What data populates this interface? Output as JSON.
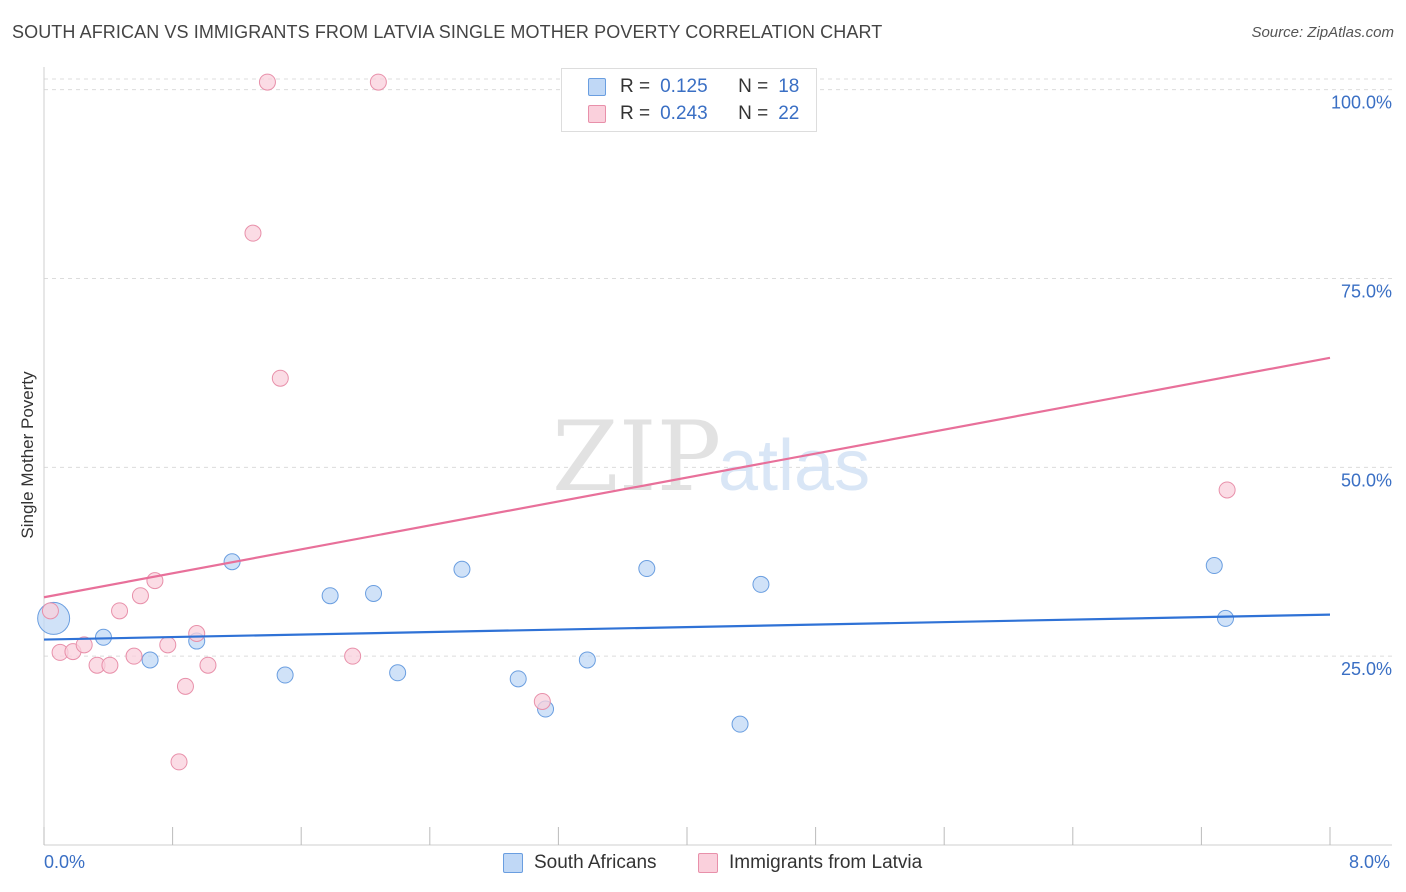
{
  "header": {
    "title": "SOUTH AFRICAN VS IMMIGRANTS FROM LATVIA SINGLE MOTHER POVERTY CORRELATION CHART",
    "source": "Source: ZipAtlas.com"
  },
  "watermark": {
    "zip": "ZIP",
    "atlas": "atlas"
  },
  "legend": {
    "rows": [
      {
        "r_label": "R =",
        "r_value": "0.125",
        "n_label": "N =",
        "n_value": "18",
        "color": "#a8c8f0",
        "border": "#6a9ee0"
      },
      {
        "r_label": "R =",
        "r_value": "0.243",
        "n_label": "N =",
        "n_value": "22",
        "color": "#f8c0d0",
        "border": "#e890aa"
      }
    ]
  },
  "bottom_legend": {
    "items": [
      {
        "label": "South Africans",
        "color": "#c0d8f6",
        "border": "#6a9ee0"
      },
      {
        "label": "Immigrants from Latvia",
        "color": "#fad0dc",
        "border": "#e890aa"
      }
    ]
  },
  "chart_data": {
    "type": "scatter",
    "title": "SOUTH AFRICAN VS IMMIGRANTS FROM LATVIA SINGLE MOTHER POVERTY CORRELATION CHART",
    "xlabel": "",
    "ylabel": "Single Mother Poverty",
    "xlim": [
      0,
      8
    ],
    "ylim": [
      0,
      103
    ],
    "x_tick_labels": [
      "0.0%",
      "8.0%"
    ],
    "y_ticks": [
      25,
      50,
      75,
      100
    ],
    "y_tick_labels": [
      "25.0%",
      "50.0%",
      "75.0%",
      "100.0%"
    ],
    "grid": "horizontal dashed",
    "series": [
      {
        "name": "South Africans",
        "color": "#6a9ee0",
        "fill": "#c0d8f6",
        "points": [
          {
            "x": 0.06,
            "y": 30.0,
            "big": true
          },
          {
            "x": 0.37,
            "y": 27.5
          },
          {
            "x": 0.66,
            "y": 24.5
          },
          {
            "x": 0.95,
            "y": 27.0
          },
          {
            "x": 1.17,
            "y": 37.5
          },
          {
            "x": 1.5,
            "y": 22.5
          },
          {
            "x": 1.78,
            "y": 33.0
          },
          {
            "x": 2.05,
            "y": 33.3
          },
          {
            "x": 2.2,
            "y": 22.8
          },
          {
            "x": 2.6,
            "y": 36.5
          },
          {
            "x": 2.95,
            "y": 22.0
          },
          {
            "x": 3.12,
            "y": 18.0
          },
          {
            "x": 3.38,
            "y": 24.5
          },
          {
            "x": 3.75,
            "y": 36.6
          },
          {
            "x": 4.33,
            "y": 16.0
          },
          {
            "x": 4.46,
            "y": 34.5
          },
          {
            "x": 7.28,
            "y": 37.0
          },
          {
            "x": 7.35,
            "y": 30.0
          }
        ],
        "trend": {
          "x1": 0,
          "y1": 27.2,
          "x2": 8,
          "y2": 30.5
        }
      },
      {
        "name": "Immigrants from Latvia",
        "color": "#e890aa",
        "fill": "#fad0dc",
        "points": [
          {
            "x": 0.04,
            "y": 31.0
          },
          {
            "x": 0.1,
            "y": 25.5
          },
          {
            "x": 0.18,
            "y": 25.6
          },
          {
            "x": 0.25,
            "y": 26.5
          },
          {
            "x": 0.33,
            "y": 23.8
          },
          {
            "x": 0.41,
            "y": 23.8
          },
          {
            "x": 0.47,
            "y": 31.0
          },
          {
            "x": 0.56,
            "y": 25.0
          },
          {
            "x": 0.6,
            "y": 33.0
          },
          {
            "x": 0.69,
            "y": 35.0
          },
          {
            "x": 0.77,
            "y": 26.5
          },
          {
            "x": 0.84,
            "y": 11.0
          },
          {
            "x": 0.88,
            "y": 21.0
          },
          {
            "x": 0.95,
            "y": 28.0
          },
          {
            "x": 1.02,
            "y": 23.8
          },
          {
            "x": 1.3,
            "y": 81.0
          },
          {
            "x": 1.39,
            "y": 101.0
          },
          {
            "x": 1.47,
            "y": 61.8
          },
          {
            "x": 1.92,
            "y": 25.0
          },
          {
            "x": 2.08,
            "y": 101.0
          },
          {
            "x": 3.1,
            "y": 19.0
          },
          {
            "x": 7.36,
            "y": 47.0
          }
        ],
        "trend": {
          "x1": 0,
          "y1": 32.8,
          "x2": 8,
          "y2": 64.5
        }
      }
    ]
  }
}
